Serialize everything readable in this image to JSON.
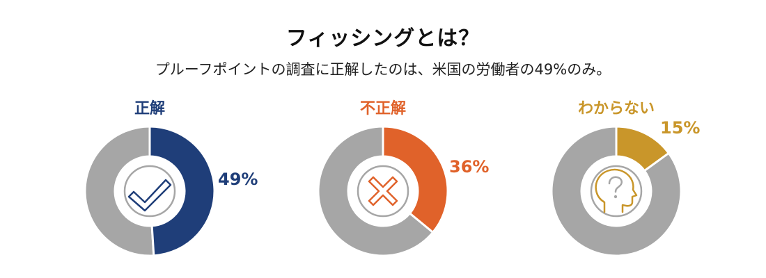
{
  "title": "フィッシングとは？",
  "subtitle": "プルーフポイントの調査に正解したのは、米国の労働者の49%のみ。",
  "chart_data": [
    {
      "type": "pie",
      "label": "正解",
      "value": 49,
      "value_label": "49%",
      "color": "#1f3e79",
      "rest_color": "#a6a6a6",
      "icon": "checkmark-icon"
    },
    {
      "type": "pie",
      "label": "不正解",
      "value": 36,
      "value_label": "36%",
      "color": "#e0622a",
      "rest_color": "#a6a6a6",
      "icon": "cross-icon"
    },
    {
      "type": "pie",
      "label": "わからない",
      "value": 15,
      "value_label": "15%",
      "color": "#c9962a",
      "rest_color": "#a6a6a6",
      "icon": "head-question-icon"
    }
  ]
}
